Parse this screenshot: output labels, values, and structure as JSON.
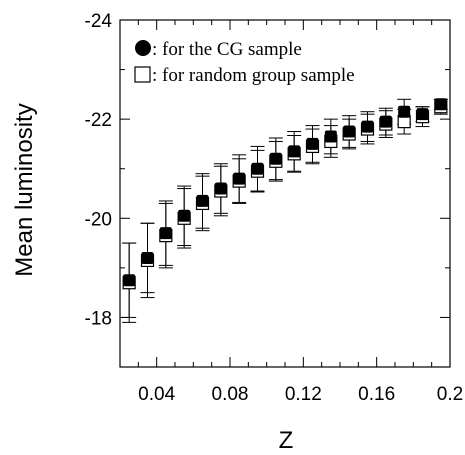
{
  "chart_data": {
    "type": "scatter",
    "title": "",
    "xlabel": "Z",
    "ylabel": "Mean luminosity",
    "xlim": [
      0.02,
      0.2
    ],
    "ylim": [
      -17,
      -24
    ],
    "y_axis_inverted": true,
    "x_ticks": [
      0.04,
      0.08,
      0.12,
      0.16,
      0.2
    ],
    "x_tick_labels": [
      "0.04",
      "0.08",
      "0.12",
      "0.16",
      "0.2"
    ],
    "y_ticks": [
      -18,
      -20,
      -22,
      -24
    ],
    "y_tick_labels": [
      "-18",
      "-20",
      "-22",
      "-24"
    ],
    "grid": false,
    "legend_position": "top-left",
    "series": [
      {
        "name": "for the CG sample",
        "legend_label": ": for the CG sample",
        "marker": "filled-circle",
        "x": [
          0.025,
          0.035,
          0.045,
          0.055,
          0.065,
          0.075,
          0.085,
          0.095,
          0.105,
          0.115,
          0.125,
          0.135,
          0.145,
          0.155,
          0.165,
          0.175,
          0.185,
          0.195
        ],
        "y": [
          -18.75,
          -19.2,
          -19.7,
          -20.05,
          -20.35,
          -20.6,
          -20.8,
          -21.0,
          -21.2,
          -21.35,
          -21.5,
          -21.65,
          -21.75,
          -21.85,
          -21.95,
          -22.15,
          -22.1,
          -22.3
        ],
        "err": [
          0.75,
          0.7,
          0.65,
          0.6,
          0.55,
          0.5,
          0.48,
          0.45,
          0.42,
          0.4,
          0.37,
          0.35,
          0.32,
          0.3,
          0.27,
          0.25,
          0.15,
          0.1
        ]
      },
      {
        "name": "for random group sample",
        "legend_label": ": for random group sample",
        "marker": "open-square",
        "x": [
          0.025,
          0.035,
          0.045,
          0.055,
          0.065,
          0.075,
          0.085,
          0.095,
          0.105,
          0.115,
          0.125,
          0.135,
          0.145,
          0.155,
          0.165,
          0.175,
          0.185,
          0.195
        ],
        "y": [
          -18.7,
          -19.15,
          -19.65,
          -20.0,
          -20.3,
          -20.55,
          -20.75,
          -20.95,
          -21.15,
          -21.3,
          -21.45,
          -21.55,
          -21.7,
          -21.8,
          -21.9,
          -21.95,
          -22.05,
          -22.25
        ],
        "err": [
          0.8,
          0.75,
          0.65,
          0.6,
          0.55,
          0.5,
          0.45,
          0.42,
          0.4,
          0.37,
          0.35,
          0.32,
          0.3,
          0.3,
          0.27,
          0.25,
          0.2,
          0.15
        ]
      }
    ]
  }
}
